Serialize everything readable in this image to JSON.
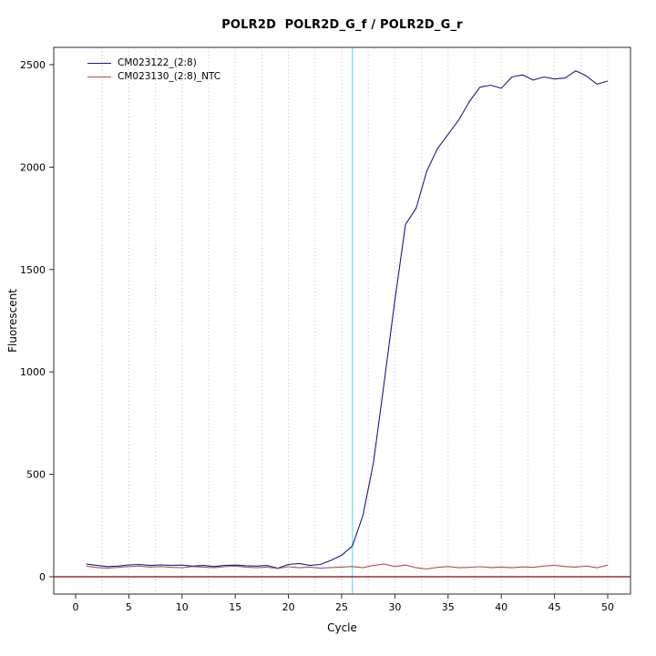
{
  "title": "POLR2D  POLR2D_G_f / POLR2D_G_r",
  "chart_data": {
    "type": "line",
    "title": "POLR2D  POLR2D_G_f / POLR2D_G_r",
    "xlabel": "Cycle",
    "ylabel": "Fluorescent",
    "xlim": [
      0,
      50
    ],
    "ylim": [
      0,
      2500
    ],
    "x_ticks": [
      0,
      5,
      10,
      15,
      20,
      25,
      30,
      35,
      40,
      45,
      50
    ],
    "y_ticks": [
      0,
      500,
      1000,
      1500,
      2000,
      2500
    ],
    "x": [
      1,
      2,
      3,
      4,
      5,
      6,
      7,
      8,
      9,
      10,
      11,
      12,
      13,
      14,
      15,
      16,
      17,
      18,
      19,
      20,
      21,
      22,
      23,
      24,
      25,
      26,
      27,
      28,
      29,
      30,
      31,
      32,
      33,
      34,
      35,
      36,
      37,
      38,
      39,
      40,
      41,
      42,
      43,
      44,
      45,
      46,
      47,
      48,
      49,
      50
    ],
    "series": [
      {
        "name": "CM023122_(2:8)",
        "color": "#1a1a8c",
        "values": [
          62,
          55,
          50,
          52,
          58,
          60,
          55,
          58,
          55,
          57,
          52,
          55,
          50,
          55,
          57,
          54,
          52,
          55,
          42,
          60,
          65,
          55,
          60,
          80,
          105,
          150,
          300,
          560,
          950,
          1350,
          1720,
          1800,
          1980,
          2090,
          2160,
          2230,
          2320,
          2390,
          2400,
          2385,
          2440,
          2450,
          2425,
          2440,
          2430,
          2435,
          2470,
          2445,
          2405,
          2420
        ]
      },
      {
        "name": "CM023130_(2:8)_NTC",
        "color": "#a8524a",
        "values": [
          52,
          45,
          42,
          46,
          50,
          52,
          47,
          50,
          46,
          44,
          50,
          47,
          44,
          49,
          52,
          47,
          44,
          47,
          40,
          49,
          44,
          47,
          42,
          45,
          47,
          50,
          44,
          55,
          62,
          50,
          57,
          44,
          38,
          46,
          50,
          44,
          46,
          49,
          45,
          47,
          44,
          48,
          46,
          52,
          56,
          50,
          47,
          52,
          44,
          57
        ]
      }
    ],
    "threshold_line": {
      "y": 0,
      "color": "#8B0000"
    },
    "ct_line": {
      "x": 26,
      "color": "#7fe3ef"
    },
    "grid": {
      "vertical_interval": 2.5,
      "color": "#c4c4c4",
      "style": "dotted"
    },
    "legend_position": "top-left"
  }
}
